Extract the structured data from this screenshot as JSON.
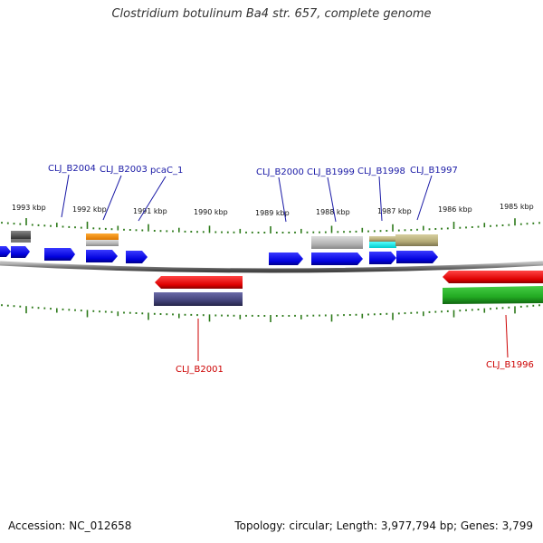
{
  "title": "Clostridium botulinum Ba4 str. 657, complete genome",
  "accession": "Accession: NC_012658",
  "summary": "Topology: circular; Length: 3,977,794 bp; Genes: 3,799",
  "scale_labels": [
    "1993 kbp",
    "1992 kbp",
    "1991 kbp",
    "1990 kbp",
    "1989 kbp",
    "1988 kbp",
    "1987 kbp",
    "1986 kbp",
    "1985 kbp"
  ],
  "forward_gene_labels": [
    "CLJ_B2004",
    "CLJ_B2003",
    "pcaC_1",
    "CLJ_B2000",
    "CLJ_B1999",
    "CLJ_B1998",
    "CLJ_B1997"
  ],
  "reverse_gene_labels": [
    "CLJ_B2001",
    "CLJ_B1996"
  ],
  "colors": {
    "forward_label": "#1a1aa6",
    "reverse_label": "#cc0000",
    "tick": "#2d7a1a",
    "backbone": "#8a8a8a",
    "forward_cds": "#0a0aee",
    "reverse_cds": "#ee0000"
  }
}
